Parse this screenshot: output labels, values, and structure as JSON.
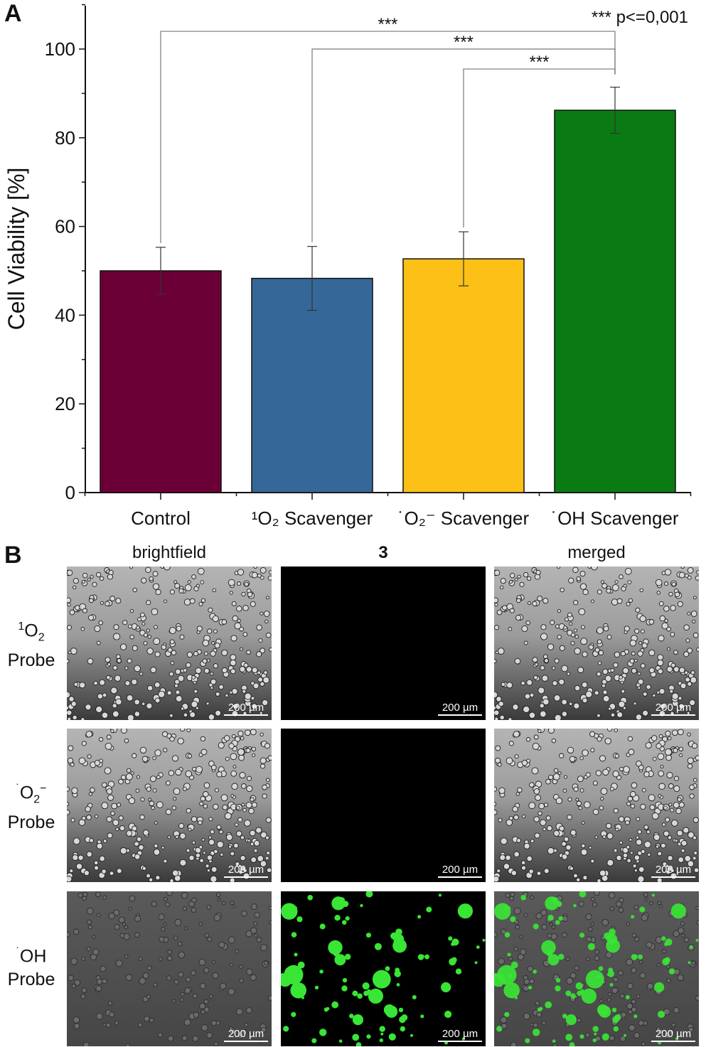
{
  "panel_a": {
    "letter": "A"
  },
  "panel_b": {
    "letter": "B",
    "columns": [
      "brightfield",
      "3",
      "merged"
    ],
    "rows": [
      {
        "dot": "",
        "sup": "1",
        "species": "O",
        "sub": "2",
        "charge": "",
        "probe": "Probe",
        "green": false
      },
      {
        "dot": "˙",
        "sup": "",
        "species": "O",
        "sub": "2",
        "charge": "−",
        "probe": "Probe",
        "green": false
      },
      {
        "dot": "˙",
        "sup": "",
        "species": "OH",
        "sub": "",
        "charge": "",
        "probe": "Probe",
        "green": true
      }
    ],
    "scale_bar": "200 µm"
  },
  "colors": {
    "control": "#6b0037",
    "singlet_o2": "#356898",
    "superoxide": "#fcc016",
    "hydroxyl": "#0a7b12",
    "fluorescence": "#39e535"
  },
  "chart_data": {
    "type": "bar",
    "ylabel": "Cell Viability [%]",
    "ylim": [
      0,
      110
    ],
    "yticks": [
      0,
      20,
      40,
      60,
      80,
      100
    ],
    "categories": [
      "Control",
      "¹O₂ Scavenger",
      "˙O₂⁻ Scavenger",
      "˙OH Scavenger"
    ],
    "values": [
      50.0,
      48.3,
      52.7,
      86.2
    ],
    "errors": [
      5.3,
      7.2,
      6.1,
      5.2
    ],
    "significance": [
      {
        "from": 0,
        "to": 3,
        "label": "***",
        "y": 104
      },
      {
        "from": 1,
        "to": 3,
        "label": "***",
        "y": 100
      },
      {
        "from": 2,
        "to": 3,
        "label": "***",
        "y": 95.5
      }
    ],
    "annotation": "*** p<=0,001",
    "grid": false,
    "legend": "none"
  }
}
